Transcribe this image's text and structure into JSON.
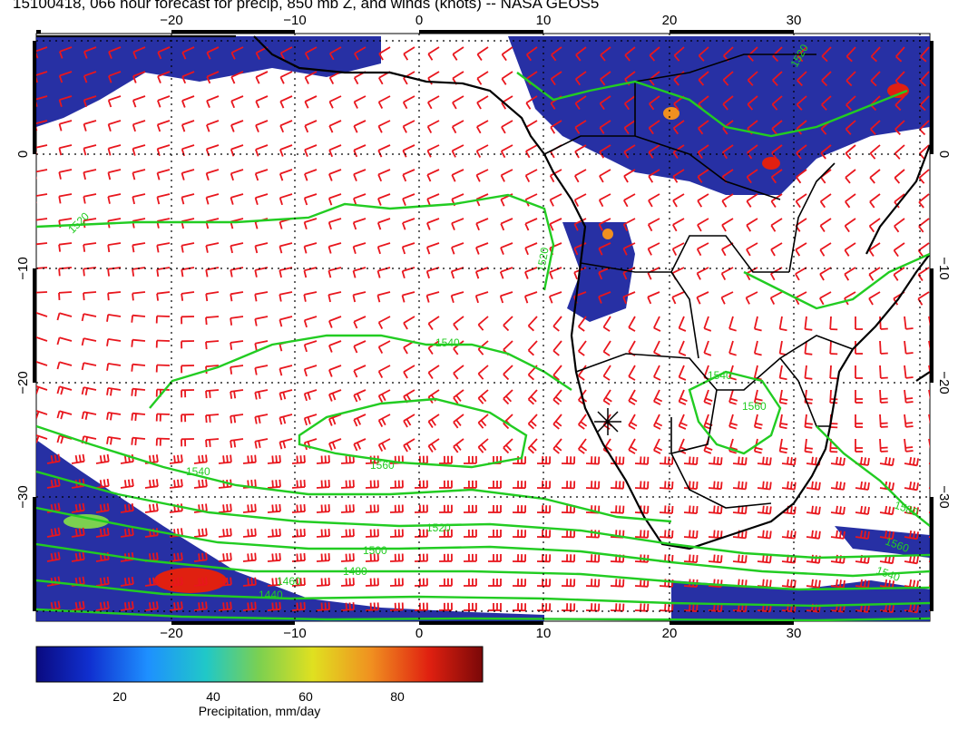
{
  "title": "15100418, 066 hour forecast for precip, 850 mb Z, and winds (knots) -- NASA GEOS5",
  "map": {
    "lon_ticks": [
      "−20",
      "−10",
      "0",
      "10",
      "20",
      "30"
    ],
    "lat_ticks": [
      "0",
      "−10",
      "−20",
      "−30"
    ],
    "contour_labels": [
      "1520",
      "1540",
      "1560",
      "1540",
      "1520",
      "1500",
      "1480",
      "1460",
      "1440",
      "1540",
      "1560",
      "1580",
      "1560",
      "1540",
      "1520",
      "1520"
    ],
    "colors": {
      "coast": "#000000",
      "contour": "#22cc22",
      "wind_barb": "#e8161d",
      "grid": "#000000"
    }
  },
  "colorbar": {
    "ticks": [
      "20",
      "40",
      "60",
      "80"
    ],
    "label": "Precipitation, mm/day",
    "colors": [
      "#0a0a80",
      "#1030d0",
      "#1e90ff",
      "#20c8c8",
      "#7cd050",
      "#e0e020",
      "#f09020",
      "#e02010",
      "#7a0808"
    ]
  }
}
